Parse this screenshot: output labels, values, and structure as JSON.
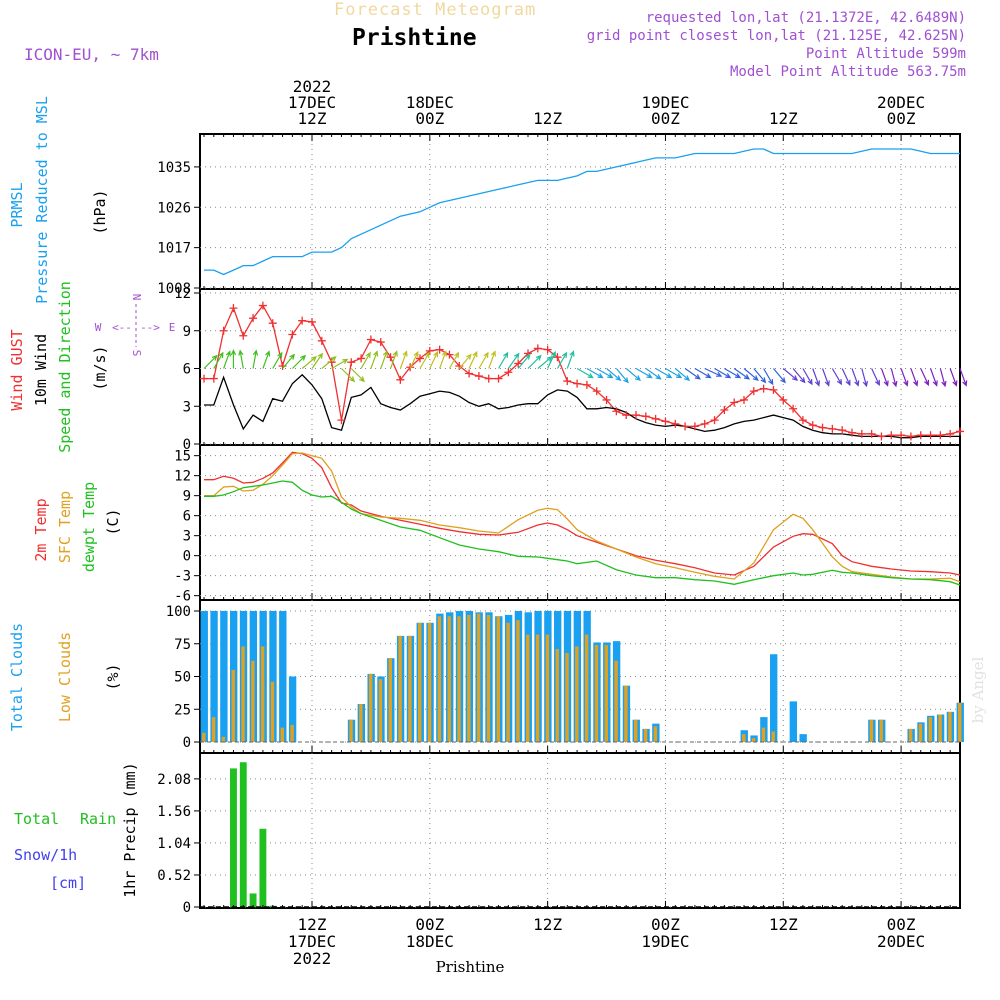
{
  "header": {
    "title": "Forecast Meteogram",
    "location": "Prishtine",
    "model": "ICON-EU, ~ 7km",
    "requested": "requested lon,lat (21.1372E, 42.6489N)",
    "grid_point": "grid point closest lon,lat (21.125E, 42.625N)",
    "point_altitude": "Point Altitude 599m",
    "model_altitude": "Model Point Altitude 563.75m"
  },
  "footer": {
    "location": "Prishtine",
    "signature": "by Angel"
  },
  "colors": {
    "pressure": "#1aa0f0",
    "gust": "#f03030",
    "wind": "#000000",
    "dir": "#20c020",
    "temp2m": "#f03030",
    "sfc": "#e0a020",
    "dewpt": "#20c020",
    "total_clouds": "#1aa0f0",
    "low_clouds": "#e0a020",
    "rain": "#20c020",
    "snow": "#4040f0",
    "label": "#a050d0"
  },
  "chart_data": [
    {
      "type": "line",
      "name": "pressure",
      "ylabel": [
        "PRMSL",
        "Pressure Reduced to MSL",
        "(hPa)"
      ],
      "ylim": [
        1008,
        1041
      ],
      "yticks": [
        1008,
        1017,
        1026,
        1035
      ],
      "x_hours": [
        0,
        1,
        2,
        3,
        4,
        5,
        6,
        7,
        8,
        9,
        10,
        11,
        12,
        13,
        14,
        15,
        16,
        18,
        20,
        22,
        24,
        26,
        28,
        30,
        32,
        34,
        36,
        38,
        39,
        40,
        42,
        44,
        46,
        48,
        50,
        52,
        54,
        56,
        57,
        58,
        60,
        62,
        64,
        66,
        68,
        70,
        72,
        74,
        76,
        77
      ],
      "values": [
        1012,
        1012,
        1011,
        1012,
        1013,
        1013,
        1014,
        1015,
        1015,
        1015,
        1015,
        1016,
        1016,
        1016,
        1017,
        1019,
        1020,
        1022,
        1024,
        1025,
        1027,
        1028,
        1029,
        1030,
        1031,
        1032,
        1032,
        1033,
        1034,
        1034,
        1035,
        1036,
        1037,
        1037,
        1038,
        1038,
        1038,
        1039,
        1039,
        1038,
        1038,
        1038,
        1038,
        1038,
        1039,
        1039,
        1039,
        1038,
        1038,
        1038
      ]
    },
    {
      "type": "line",
      "name": "wind",
      "ylabel": [
        "Wind GUST",
        "10m Wind",
        "Speed and Direction",
        "(m/s)"
      ],
      "ylim": [
        0,
        12
      ],
      "yticks": [
        0,
        3,
        6,
        9,
        12
      ],
      "compass": {
        "w": "W",
        "e": "E",
        "n": "N",
        "s": "S",
        "arrow_w": "<--",
        "arrow_e": "-->"
      },
      "x_hours": [
        0,
        1,
        2,
        3,
        4,
        5,
        6,
        7,
        8,
        9,
        10,
        11,
        12,
        13,
        14,
        15,
        16,
        17,
        18,
        19,
        20,
        21,
        22,
        23,
        24,
        25,
        26,
        27,
        28,
        29,
        30,
        31,
        32,
        33,
        34,
        35,
        36,
        37,
        38,
        39,
        40,
        41,
        42,
        43,
        44,
        45,
        46,
        47,
        48,
        49,
        50,
        51,
        52,
        53,
        54,
        55,
        56,
        57,
        58,
        59,
        60,
        61,
        62,
        63,
        64,
        65,
        66,
        67,
        68,
        69,
        70,
        71,
        72,
        73,
        74,
        75,
        76,
        77
      ],
      "gust": [
        5.2,
        5.2,
        9.0,
        10.8,
        8.6,
        10.0,
        11.0,
        9.6,
        6.2,
        8.7,
        9.8,
        9.7,
        8.2,
        6.5,
        1.9,
        6.5,
        6.8,
        8.3,
        8.1,
        6.9,
        5.1,
        6.1,
        6.8,
        7.4,
        7.5,
        7.1,
        6.2,
        5.6,
        5.4,
        5.2,
        5.2,
        5.7,
        6.4,
        7.2,
        7.6,
        7.5,
        6.9,
        5.0,
        4.8,
        4.7,
        4.2,
        3.5,
        2.6,
        2.3,
        2.3,
        2.2,
        2.0,
        1.8,
        1.6,
        1.4,
        1.4,
        1.6,
        1.9,
        2.7,
        3.3,
        3.5,
        4.2,
        4.4,
        4.3,
        3.5,
        2.8,
        1.9,
        1.5,
        1.3,
        1.2,
        1.1,
        0.9,
        0.8,
        0.8,
        0.6,
        0.7,
        0.7,
        0.6,
        0.7,
        0.7,
        0.7,
        0.8,
        1.0
      ],
      "speed": [
        3.1,
        3.1,
        5.3,
        3.1,
        1.2,
        2.3,
        1.8,
        3.6,
        3.4,
        4.8,
        5.5,
        4.7,
        3.6,
        1.3,
        1.1,
        3.7,
        3.9,
        4.5,
        3.2,
        2.9,
        2.7,
        3.2,
        3.8,
        4.0,
        4.2,
        4.1,
        3.8,
        3.3,
        3.0,
        3.2,
        2.8,
        2.9,
        3.1,
        3.2,
        3.2,
        3.9,
        4.3,
        4.2,
        3.7,
        2.8,
        2.8,
        2.9,
        2.8,
        2.5,
        2.0,
        1.7,
        1.5,
        1.4,
        1.5,
        1.4,
        1.2,
        1.0,
        1.1,
        1.3,
        1.6,
        1.8,
        1.9,
        2.1,
        2.3,
        2.1,
        1.9,
        1.4,
        1.1,
        0.9,
        0.8,
        0.8,
        0.7,
        0.6,
        0.6,
        0.6,
        0.6,
        0.5,
        0.5,
        0.6,
        0.6,
        0.6,
        0.6,
        0.6
      ],
      "direction_deg": [
        225,
        210,
        200,
        180,
        170,
        190,
        200,
        210,
        220,
        225,
        230,
        215,
        230,
        240,
        315,
        315,
        210,
        200,
        200,
        200,
        200,
        205,
        210,
        205,
        200,
        210,
        220,
        205,
        210,
        200,
        210,
        215,
        220,
        225,
        230,
        205,
        210,
        200,
        300,
        300,
        300,
        310,
        320,
        310,
        300,
        305,
        300,
        300,
        310,
        305,
        300,
        295,
        300,
        300,
        305,
        310,
        320,
        330,
        320,
        310,
        320,
        330,
        340,
        340,
        330,
        335,
        340,
        345,
        335,
        340,
        345,
        340,
        340,
        335,
        340,
        345,
        340,
        340
      ]
    },
    {
      "type": "line",
      "name": "temperature",
      "ylabel": [
        "2m Temp",
        "SFC Temp",
        "dewpt Temp",
        "(C)"
      ],
      "ylim": [
        -6.5,
        16
      ],
      "yticks": [
        -6,
        -3,
        0,
        3,
        6,
        9,
        12,
        15
      ],
      "x_hours": [
        0,
        1,
        2,
        3,
        4,
        5,
        6,
        7,
        8,
        9,
        10,
        11,
        12,
        13,
        14,
        15,
        16,
        18,
        20,
        22,
        24,
        26,
        28,
        30,
        32,
        34,
        35,
        36,
        37,
        38,
        40,
        42,
        44,
        46,
        48,
        50,
        52,
        54,
        56,
        58,
        60,
        61,
        62,
        64,
        65,
        66,
        68,
        70,
        72,
        74,
        76,
        77
      ],
      "temp2m": [
        11.4,
        11.4,
        11.9,
        11.6,
        10.9,
        11.0,
        11.6,
        12.4,
        13.9,
        15.5,
        15.3,
        14.6,
        13.2,
        10.2,
        7.9,
        7.6,
        6.7,
        5.9,
        5.3,
        4.7,
        4.1,
        3.6,
        3.2,
        3.1,
        3.5,
        4.6,
        4.9,
        4.6,
        3.9,
        3.0,
        2.0,
        1.0,
        0.0,
        -0.7,
        -1.2,
        -1.8,
        -2.6,
        -2.9,
        -1.6,
        1.3,
        2.9,
        3.3,
        3.2,
        1.8,
        0.0,
        -0.9,
        -1.6,
        -2.0,
        -2.3,
        -2.4,
        -2.6,
        -2.9
      ],
      "sfc": [
        9.0,
        9.0,
        10.3,
        10.4,
        9.7,
        9.8,
        10.7,
        12.0,
        13.6,
        15.3,
        15.4,
        15.0,
        14.6,
        12.7,
        8.8,
        7.3,
        6.3,
        5.8,
        5.6,
        5.3,
        4.6,
        4.2,
        3.7,
        3.4,
        5.4,
        6.8,
        7.1,
        6.9,
        5.5,
        3.9,
        2.2,
        1.0,
        -0.2,
        -1.2,
        -1.8,
        -2.5,
        -3.1,
        -3.5,
        -1.1,
        3.9,
        6.2,
        5.6,
        3.9,
        -0.2,
        -1.6,
        -2.4,
        -2.8,
        -3.2,
        -3.5,
        -3.5,
        -3.4,
        -3.9
      ],
      "dewpt": [
        8.9,
        8.9,
        9.1,
        9.6,
        10.2,
        10.4,
        10.6,
        10.9,
        11.2,
        11.0,
        9.8,
        9.1,
        8.8,
        8.9,
        8.0,
        7.0,
        6.3,
        5.3,
        4.3,
        3.8,
        2.7,
        1.6,
        1.0,
        0.6,
        -0.1,
        -0.2,
        -0.4,
        -0.6,
        -0.8,
        -1.2,
        -0.8,
        -2.1,
        -2.9,
        -3.3,
        -3.3,
        -3.6,
        -3.8,
        -4.3,
        -3.6,
        -3.0,
        -2.6,
        -2.9,
        -2.8,
        -2.2,
        -2.5,
        -2.6,
        -3.0,
        -3.3,
        -3.5,
        -3.6,
        -3.9,
        -4.4
      ]
    },
    {
      "type": "bar",
      "name": "clouds",
      "ylabel": [
        "Total Clouds",
        "Low Clouds",
        "(%)"
      ],
      "ylim": [
        0,
        100
      ],
      "yticks": [
        0,
        25,
        50,
        75,
        100
      ],
      "x_hours": [
        0,
        1,
        2,
        3,
        4,
        5,
        6,
        7,
        8,
        9,
        10,
        11,
        12,
        13,
        14,
        15,
        16,
        17,
        18,
        19,
        20,
        21,
        22,
        23,
        24,
        25,
        26,
        27,
        28,
        29,
        30,
        31,
        32,
        33,
        34,
        35,
        36,
        37,
        38,
        39,
        40,
        41,
        42,
        43,
        44,
        45,
        46,
        47,
        48,
        49,
        50,
        51,
        52,
        53,
        54,
        55,
        56,
        57,
        58,
        59,
        60,
        61,
        62,
        63,
        64,
        65,
        66,
        67,
        68,
        69,
        70,
        71,
        72,
        73,
        74,
        75,
        76,
        77
      ],
      "total": [
        100,
        100,
        100,
        100,
        100,
        100,
        100,
        100,
        100,
        50,
        0,
        0,
        0,
        0,
        0,
        17,
        29,
        52,
        50,
        64,
        81,
        81,
        91,
        91,
        98,
        99,
        100,
        100,
        99,
        99,
        96,
        97,
        100,
        99,
        100,
        100,
        100,
        100,
        100,
        100,
        76,
        76,
        77,
        43,
        17,
        10,
        14,
        0,
        0,
        0,
        0,
        0,
        0,
        0,
        0,
        9,
        5,
        19,
        67,
        0,
        31,
        6,
        0,
        0,
        0,
        0,
        0,
        0,
        17,
        17,
        0,
        0,
        10,
        15,
        20,
        21,
        23,
        30
      ],
      "low": [
        7,
        19,
        4,
        55,
        73,
        62,
        73,
        46,
        11,
        13,
        0,
        0,
        0,
        0,
        0,
        17,
        29,
        52,
        48,
        64,
        81,
        81,
        91,
        91,
        96,
        96,
        96,
        97,
        98,
        97,
        96,
        91,
        93,
        82,
        82,
        82,
        71,
        68,
        73,
        82,
        74,
        74,
        62,
        43,
        17,
        10,
        12,
        0,
        0,
        0,
        0,
        0,
        0,
        0,
        0,
        6,
        3,
        11,
        8,
        0,
        0,
        0,
        0,
        0,
        0,
        0,
        0,
        0,
        17,
        17,
        0,
        0,
        10,
        14,
        19,
        21,
        23,
        30
      ]
    },
    {
      "type": "bar",
      "name": "precip",
      "ylabel": [
        "1hr Precip (mm)"
      ],
      "legend": {
        "total": "Total",
        "rain": "Rain",
        "snow": "Snow/1h",
        "cm": "[cm]"
      },
      "ylim": [
        0,
        2.5
      ],
      "yticks": [
        0,
        0.52,
        1.04,
        1.56,
        2.08
      ],
      "x_hours": [
        3,
        4,
        5,
        6,
        7
      ],
      "rain": [
        2.25,
        2.35,
        0.22,
        1.27,
        0.02
      ]
    }
  ],
  "time_axis": {
    "start": "2022-12-17 01Z",
    "hours": 77,
    "top_labels": [
      {
        "hour": 11,
        "line1": "2022",
        "line2": "17DEC",
        "line3": "12Z"
      },
      {
        "hour": 23,
        "line1": "",
        "line2": "18DEC",
        "line3": "00Z"
      },
      {
        "hour": 35,
        "line1": "",
        "line2": "",
        "line3": "12Z"
      },
      {
        "hour": 47,
        "line1": "",
        "line2": "19DEC",
        "line3": "00Z"
      },
      {
        "hour": 59,
        "line1": "",
        "line2": "",
        "line3": "12Z"
      },
      {
        "hour": 71,
        "line1": "",
        "line2": "20DEC",
        "line3": "00Z"
      }
    ],
    "bottom_labels": [
      {
        "hour": 11,
        "line1": "12Z",
        "line2": "17DEC",
        "line3": "2022"
      },
      {
        "hour": 23,
        "line1": "00Z",
        "line2": "18DEC",
        "line3": ""
      },
      {
        "hour": 35,
        "line1": "12Z",
        "line2": "",
        "line3": ""
      },
      {
        "hour": 47,
        "line1": "00Z",
        "line2": "19DEC",
        "line3": ""
      },
      {
        "hour": 59,
        "line1": "12Z",
        "line2": "",
        "line3": ""
      },
      {
        "hour": 71,
        "line1": "00Z",
        "line2": "20DEC",
        "line3": ""
      }
    ]
  }
}
